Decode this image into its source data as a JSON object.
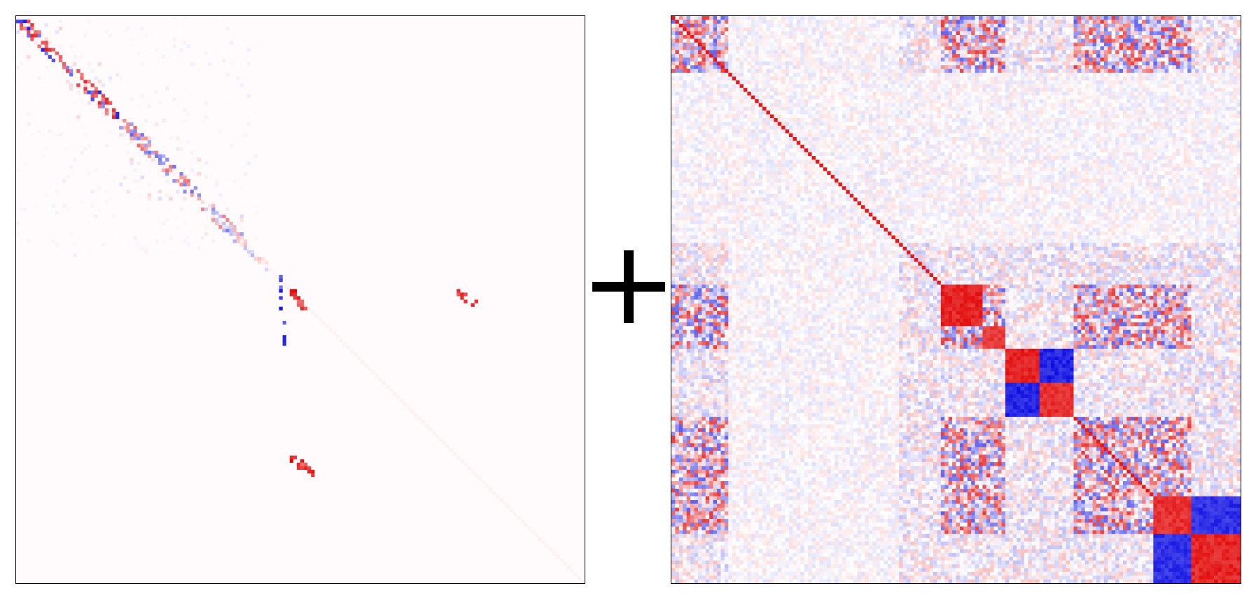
{
  "chart_data": [
    {
      "type": "heatmap",
      "panel": "left",
      "title": "",
      "description_colors": {
        "positive": "#d9161c",
        "negative": "#1a1adb",
        "zero": "#fffafc"
      },
      "pattern": "sparse",
      "value_range": [
        -1,
        1
      ],
      "diagonal_blocks": [
        {
          "start": 0.0,
          "end": 0.08,
          "strength": 0.9
        },
        {
          "start": 0.08,
          "end": 0.18,
          "strength": 0.85
        },
        {
          "start": 0.18,
          "end": 0.32,
          "strength": 0.6
        },
        {
          "start": 0.32,
          "end": 0.4,
          "strength": 0.5
        }
      ],
      "off_diagonal_streaks": [
        {
          "r0": 0.48,
          "r1": 0.52,
          "c0": 0.48,
          "c1": 0.51,
          "sign": 1
        },
        {
          "r0": 0.48,
          "r1": 0.51,
          "c0": 0.77,
          "c1": 0.81,
          "sign": 1
        },
        {
          "r0": 0.77,
          "r1": 0.81,
          "c0": 0.48,
          "c1": 0.52,
          "sign": 1
        },
        {
          "r0": 0.45,
          "r1": 0.58,
          "c0": 0.46,
          "c1": 0.47,
          "sign": -1
        }
      ]
    },
    {
      "type": "heatmap",
      "panel": "right",
      "title": "",
      "description_colors": {
        "positive": "#e00000",
        "negative": "#0000e0",
        "zero": "#ffffff"
      },
      "pattern": "dense-block",
      "value_range": [
        -1,
        1
      ],
      "block_boundaries": [
        0.0,
        0.1,
        0.4,
        0.475,
        0.545,
        0.59,
        0.65,
        0.705,
        0.765,
        0.85,
        0.915,
        1.0
      ],
      "strong_blocks": [
        {
          "i": 3,
          "j": 3,
          "value": 0.95
        },
        {
          "i": 4,
          "j": 4,
          "value": 0.85
        },
        {
          "i": 5,
          "j": 5,
          "value": 0.95
        },
        {
          "i": 6,
          "j": 6,
          "value": 0.9
        },
        {
          "i": 5,
          "j": 6,
          "value": -0.95
        },
        {
          "i": 6,
          "j": 5,
          "value": -0.95
        },
        {
          "i": 9,
          "j": 9,
          "value": 0.9
        },
        {
          "i": 10,
          "j": 10,
          "value": 0.95
        },
        {
          "i": 9,
          "j": 10,
          "value": -0.9
        },
        {
          "i": 10,
          "j": 9,
          "value": -0.9
        }
      ]
    }
  ],
  "operator_symbol": "+"
}
